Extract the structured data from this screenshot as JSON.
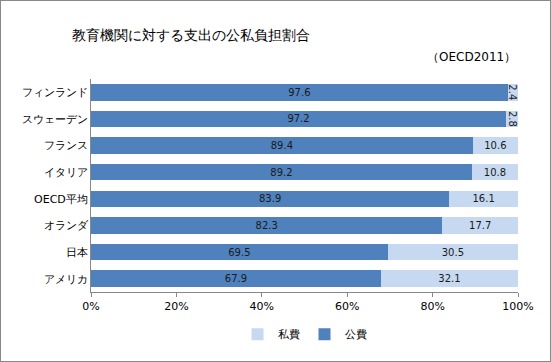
{
  "chart_data": {
    "type": "bar",
    "title": "教育機関に対する支出の公私負担割合",
    "subtitle": "（OECD2011）",
    "orientation": "horizontal",
    "stacked": true,
    "data_labels": true,
    "grid": false,
    "legend": "bottom",
    "categories": [
      "フィンランド",
      "スウェーデン",
      "フランス",
      "イタリア",
      "OECD平均",
      "オランダ",
      "日本",
      "アメリカ"
    ],
    "series": [
      {
        "name": "公費",
        "color": "#4F81BD",
        "values": [
          97.6,
          97.2,
          89.4,
          89.2,
          83.9,
          82.3,
          69.5,
          67.9
        ]
      },
      {
        "name": "私費",
        "color": "#C6D9F1",
        "values": [
          2.4,
          2.8,
          10.6,
          10.8,
          16.1,
          17.7,
          30.5,
          32.1
        ]
      }
    ],
    "xlim": [
      0,
      100
    ],
    "xticks": [
      {
        "value": 0,
        "label": "0%"
      },
      {
        "value": 20,
        "label": "20%"
      },
      {
        "value": 40,
        "label": "40%"
      },
      {
        "value": 60,
        "label": "60%"
      },
      {
        "value": 80,
        "label": "80%"
      },
      {
        "value": 100,
        "label": "100%"
      }
    ]
  }
}
